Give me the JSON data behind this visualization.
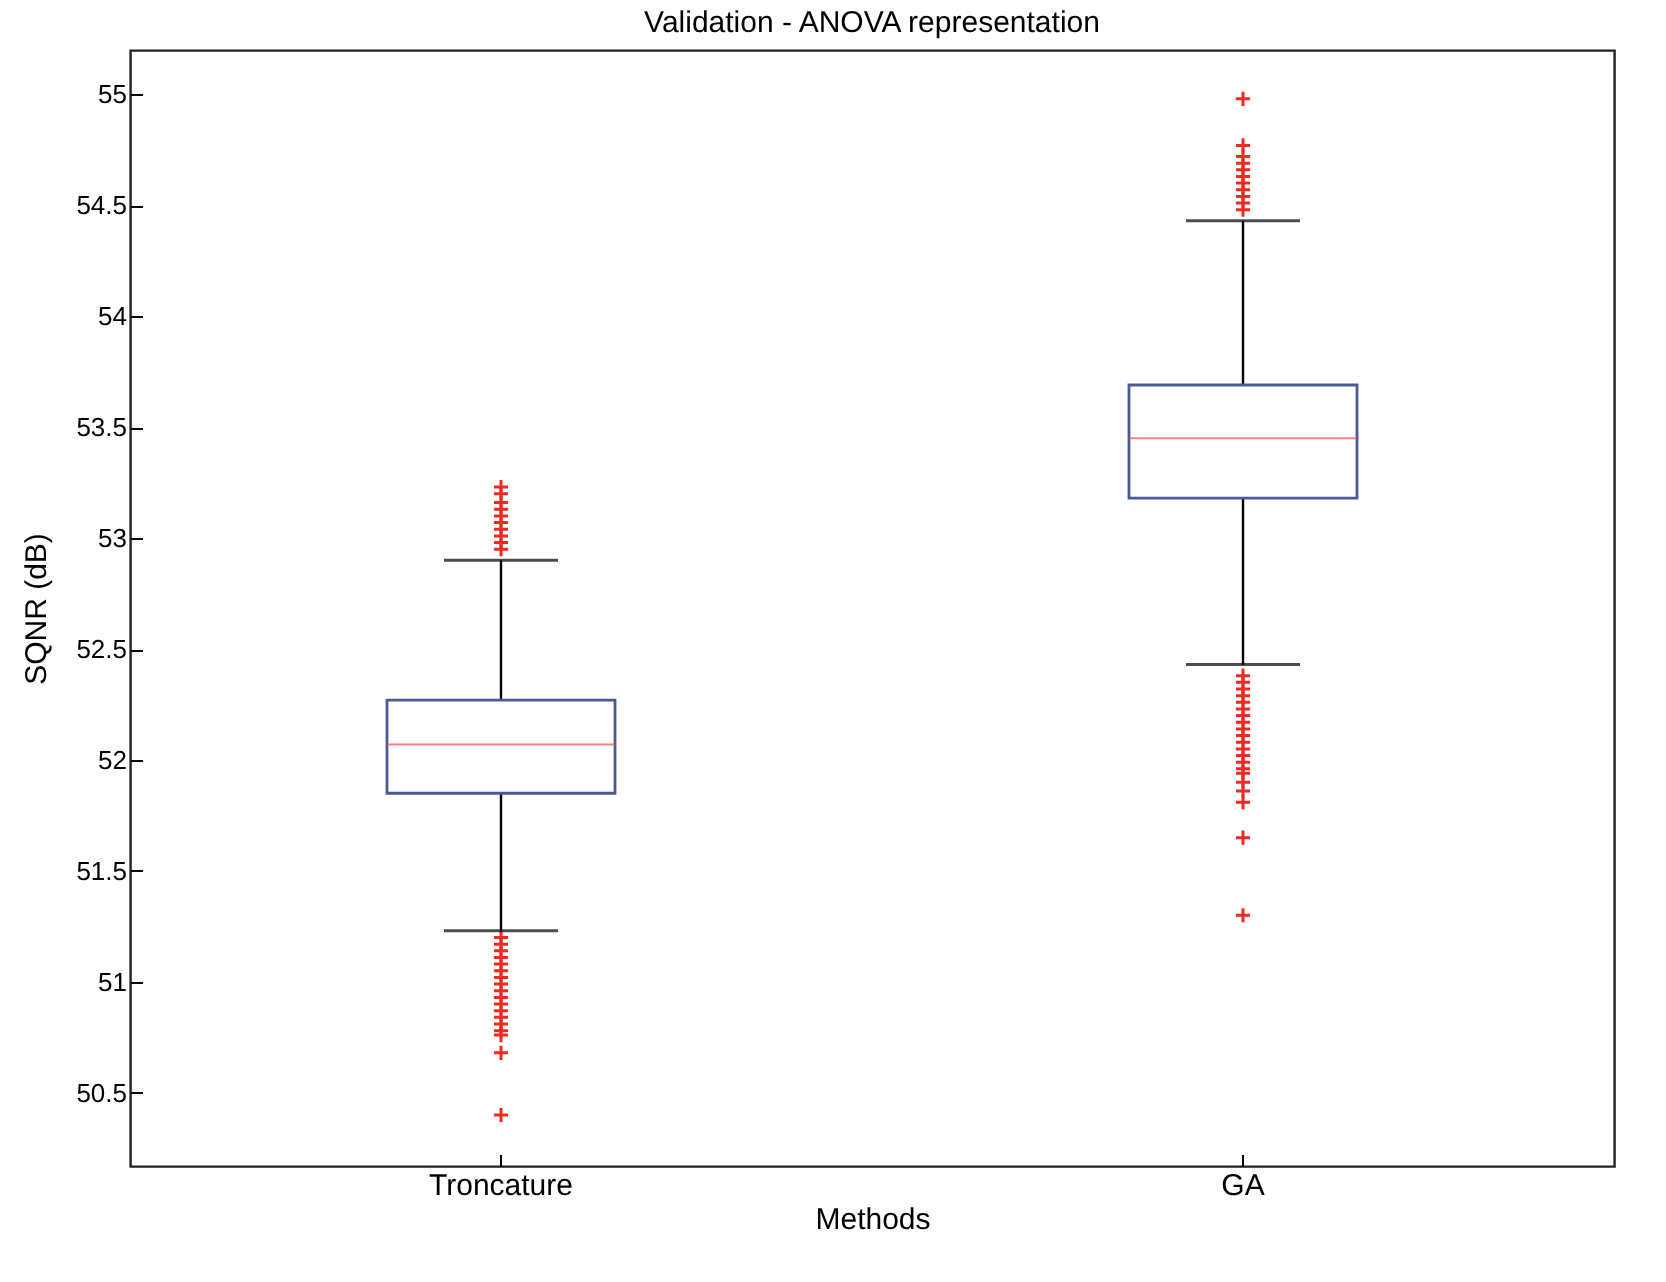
{
  "chart_data": {
    "type": "box",
    "title": "Validation - ANOVA representation",
    "xlabel": "Methods",
    "ylabel": "SQNR (dB)",
    "categories": [
      "Troncature",
      "GA"
    ],
    "ylim": [
      50.17,
      55.2
    ],
    "yticks": [
      50.5,
      51,
      51.5,
      52,
      52.5,
      53,
      53.5,
      54,
      54.5,
      55
    ],
    "marker": "cross",
    "series": [
      {
        "color": "#4a5a95",
        "boxes": [
          {
            "low": 51.23,
            "q1": 51.85,
            "median": 52.07,
            "q3": 52.27,
            "high": 52.9,
            "outliers": [
              52.95,
              52.98,
              53.01,
              53.04,
              53.07,
              53.1,
              53.13,
              53.16,
              53.2,
              53.23,
              51.2,
              51.17,
              51.14,
              51.11,
              51.08,
              51.05,
              51.02,
              50.99,
              50.96,
              50.93,
              50.9,
              50.87,
              50.84,
              50.81,
              50.78,
              50.76,
              50.68,
              50.4
            ]
          },
          {
            "low": 52.43,
            "q1": 53.18,
            "median": 53.45,
            "q3": 53.69,
            "high": 54.43,
            "outliers": [
              54.48,
              54.51,
              54.54,
              54.57,
              54.6,
              54.63,
              54.66,
              54.69,
              54.72,
              54.77,
              54.98,
              52.38,
              52.35,
              52.32,
              52.29,
              52.26,
              52.23,
              52.2,
              52.17,
              52.14,
              52.11,
              52.08,
              52.05,
              52.02,
              51.99,
              51.96,
              51.94,
              51.9,
              51.86,
              51.81,
              51.65,
              51.3
            ]
          }
        ]
      }
    ]
  }
}
